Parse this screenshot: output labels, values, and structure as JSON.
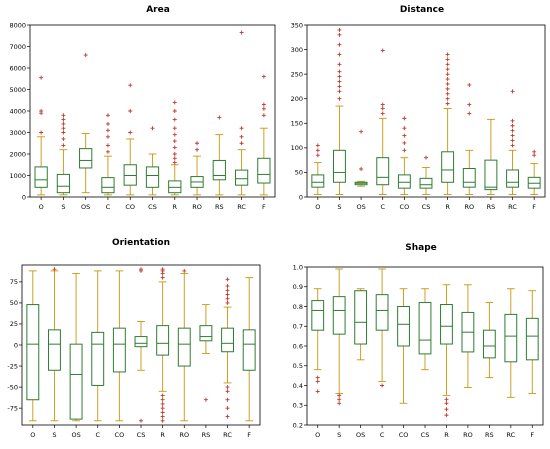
{
  "colors": {
    "box": "#2e7d32",
    "median": "#2e7d32",
    "whisker": "#c8960c",
    "outlier": "#c0392b"
  },
  "chart_data": [
    {
      "type": "box",
      "title": "Area",
      "xlabel": "",
      "ylabel": "",
      "ylim": [
        0,
        8000
      ],
      "yticks": [
        "0",
        "1000",
        "2000",
        "3000",
        "4000",
        "5000",
        "6000",
        "7000",
        "8000"
      ],
      "categories": [
        "O",
        "S",
        "OS",
        "C",
        "CO",
        "CS",
        "R",
        "RO",
        "RS",
        "RC",
        "F"
      ],
      "boxes": [
        {
          "whislo": 100,
          "q1": 450,
          "med": 800,
          "q3": 1400,
          "whishi": 2800,
          "fliers": [
            3000,
            3900,
            4000,
            5550
          ]
        },
        {
          "whislo": 100,
          "q1": 200,
          "med": 500,
          "q3": 1050,
          "whishi": 2200,
          "fliers": [
            2400,
            2700,
            3000,
            3200,
            3400,
            3600,
            3800
          ]
        },
        {
          "whislo": 200,
          "q1": 1350,
          "med": 1700,
          "q3": 2250,
          "whishi": 2950,
          "fliers": [
            6600
          ]
        },
        {
          "whislo": 100,
          "q1": 200,
          "med": 450,
          "q3": 900,
          "whishi": 1900,
          "fliers": [
            2100,
            2400,
            2800,
            3100,
            3400,
            3800
          ]
        },
        {
          "whislo": 100,
          "q1": 550,
          "med": 1000,
          "q3": 1500,
          "whishi": 2700,
          "fliers": [
            3000,
            4000,
            5200
          ]
        },
        {
          "whislo": 100,
          "q1": 450,
          "med": 1000,
          "q3": 1400,
          "whishi": 2000,
          "fliers": [
            3200
          ]
        },
        {
          "whislo": 100,
          "q1": 200,
          "med": 450,
          "q3": 750,
          "whishi": 1500,
          "fliers": [
            1600,
            1800,
            2000,
            2300,
            2600,
            2900,
            3200,
            3600,
            4000,
            4400
          ]
        },
        {
          "whislo": 100,
          "q1": 450,
          "med": 700,
          "q3": 950,
          "whishi": 1900,
          "fliers": [
            2200,
            2500
          ]
        },
        {
          "whislo": 100,
          "q1": 800,
          "med": 1000,
          "q3": 1700,
          "whishi": 2900,
          "fliers": [
            3700
          ]
        },
        {
          "whislo": 100,
          "q1": 550,
          "med": 850,
          "q3": 1250,
          "whishi": 2200,
          "fliers": [
            2500,
            2800,
            3200,
            7650
          ]
        },
        {
          "whislo": 100,
          "q1": 650,
          "med": 1050,
          "q3": 1800,
          "whishi": 3200,
          "fliers": [
            3800,
            4100,
            4300,
            5600
          ]
        }
      ]
    },
    {
      "type": "box",
      "title": "Distance",
      "xlabel": "",
      "ylabel": "",
      "ylim": [
        0,
        350
      ],
      "yticks": [
        "0",
        "50",
        "100",
        "150",
        "200",
        "250",
        "300",
        "350"
      ],
      "categories": [
        "O",
        "S",
        "OS",
        "C",
        "CO",
        "CS",
        "R",
        "RO",
        "RS",
        "RC",
        "F"
      ],
      "boxes": [
        {
          "whislo": 5,
          "q1": 20,
          "med": 30,
          "q3": 45,
          "whishi": 70,
          "fliers": [
            85,
            95,
            105
          ]
        },
        {
          "whislo": 5,
          "q1": 30,
          "med": 50,
          "q3": 95,
          "whishi": 185,
          "fliers": [
            200,
            215,
            225,
            235,
            245,
            255,
            270,
            290,
            310,
            330,
            340
          ]
        },
        {
          "whislo": 22,
          "q1": 25,
          "med": 28,
          "q3": 30,
          "whishi": 32,
          "fliers": [
            57,
            133
          ]
        },
        {
          "whislo": 5,
          "q1": 25,
          "med": 40,
          "q3": 80,
          "whishi": 160,
          "fliers": [
            170,
            180,
            188,
            298
          ]
        },
        {
          "whislo": 5,
          "q1": 18,
          "med": 30,
          "q3": 45,
          "whishi": 80,
          "fliers": [
            95,
            110,
            125,
            140,
            160
          ]
        },
        {
          "whislo": 5,
          "q1": 18,
          "med": 25,
          "q3": 38,
          "whishi": 60,
          "fliers": [
            80
          ]
        },
        {
          "whislo": 5,
          "q1": 30,
          "med": 55,
          "q3": 92,
          "whishi": 180,
          "fliers": [
            190,
            200,
            210,
            220,
            230,
            240,
            250,
            260,
            270,
            280,
            290
          ]
        },
        {
          "whislo": 5,
          "q1": 20,
          "med": 30,
          "q3": 58,
          "whishi": 95,
          "fliers": [
            170,
            188,
            228
          ]
        },
        {
          "whislo": 5,
          "q1": 15,
          "med": 20,
          "q3": 75,
          "whishi": 158,
          "fliers": []
        },
        {
          "whislo": 5,
          "q1": 20,
          "med": 30,
          "q3": 55,
          "whishi": 95,
          "fliers": [
            105,
            115,
            125,
            135,
            145,
            155,
            215
          ]
        },
        {
          "whislo": 5,
          "q1": 18,
          "med": 28,
          "q3": 40,
          "whishi": 68,
          "fliers": [
            85,
            92
          ]
        }
      ]
    },
    {
      "type": "box",
      "title": "Orientation",
      "xlabel": "",
      "ylabel": "",
      "ylim": [
        -95,
        95
      ],
      "yticks": [
        "-75",
        "-50",
        "-25",
        "0",
        "25",
        "50",
        "75"
      ],
      "categories": [
        "O",
        "S",
        "OS",
        "C",
        "CO",
        "CS",
        "R",
        "RO",
        "RS",
        "RC",
        "F"
      ],
      "boxes": [
        {
          "whislo": -90,
          "q1": -65,
          "med": 1,
          "q3": 48,
          "whishi": 88,
          "fliers": []
        },
        {
          "whislo": -90,
          "q1": -30,
          "med": 1,
          "q3": 18,
          "whishi": 88,
          "fliers": [
            90
          ]
        },
        {
          "whislo": -90,
          "q1": -88,
          "med": -35,
          "q3": 1,
          "whishi": 85,
          "fliers": []
        },
        {
          "whislo": -90,
          "q1": -48,
          "med": 1,
          "q3": 15,
          "whishi": 88,
          "fliers": []
        },
        {
          "whislo": -90,
          "q1": -32,
          "med": 1,
          "q3": 20,
          "whishi": 88,
          "fliers": []
        },
        {
          "whislo": -30,
          "q1": -2,
          "med": 2,
          "q3": 10,
          "whishi": 28,
          "fliers": [
            -90,
            88,
            90
          ]
        },
        {
          "whislo": -55,
          "q1": -12,
          "med": 2,
          "q3": 23,
          "whishi": 75,
          "fliers": [
            -90,
            -85,
            -80,
            -75,
            -70,
            -65,
            -60,
            80,
            85,
            88,
            90
          ]
        },
        {
          "whislo": -90,
          "q1": -25,
          "med": 1,
          "q3": 20,
          "whishi": 85,
          "fliers": [
            88
          ]
        },
        {
          "whislo": -10,
          "q1": 5,
          "med": 10,
          "q3": 23,
          "whishi": 48,
          "fliers": [
            -65
          ]
        },
        {
          "whislo": -45,
          "q1": -8,
          "med": 2,
          "q3": 20,
          "whishi": 45,
          "fliers": [
            -85,
            -75,
            -65,
            -55,
            -50,
            50,
            55,
            60,
            65,
            70,
            78
          ]
        },
        {
          "whislo": -90,
          "q1": -30,
          "med": 1,
          "q3": 18,
          "whishi": 80,
          "fliers": []
        }
      ]
    },
    {
      "type": "box",
      "title": "Shape",
      "xlabel": "",
      "ylabel": "",
      "ylim": [
        0.2,
        1.0
      ],
      "yticks": [
        "0.2",
        "0.3",
        "0.4",
        "0.5",
        "0.6",
        "0.7",
        "0.8",
        "0.9",
        "1.0"
      ],
      "categories": [
        "O",
        "S",
        "OS",
        "C",
        "CO",
        "CS",
        "R",
        "RO",
        "RS",
        "RC",
        "F"
      ],
      "boxes": [
        {
          "whislo": 0.48,
          "q1": 0.68,
          "med": 0.78,
          "q3": 0.83,
          "whishi": 0.89,
          "fliers": [
            0.37,
            0.42,
            0.44
          ]
        },
        {
          "whislo": 0.36,
          "q1": 0.66,
          "med": 0.78,
          "q3": 0.85,
          "whishi": 0.99,
          "fliers": [
            0.31,
            0.33,
            0.35
          ]
        },
        {
          "whislo": 0.53,
          "q1": 0.61,
          "med": 0.72,
          "q3": 0.88,
          "whishi": 0.89,
          "fliers": []
        },
        {
          "whislo": 0.42,
          "q1": 0.68,
          "med": 0.78,
          "q3": 0.86,
          "whishi": 0.99,
          "fliers": [
            0.4
          ]
        },
        {
          "whislo": 0.31,
          "q1": 0.6,
          "med": 0.71,
          "q3": 0.8,
          "whishi": 0.89,
          "fliers": []
        },
        {
          "whislo": 0.48,
          "q1": 0.56,
          "med": 0.63,
          "q3": 0.82,
          "whishi": 0.89,
          "fliers": []
        },
        {
          "whislo": 0.35,
          "q1": 0.61,
          "med": 0.7,
          "q3": 0.81,
          "whishi": 0.91,
          "fliers": [
            0.25,
            0.28,
            0.31,
            0.33
          ]
        },
        {
          "whislo": 0.39,
          "q1": 0.57,
          "med": 0.67,
          "q3": 0.77,
          "whishi": 0.91,
          "fliers": []
        },
        {
          "whislo": 0.44,
          "q1": 0.54,
          "med": 0.6,
          "q3": 0.68,
          "whishi": 0.82,
          "fliers": []
        },
        {
          "whislo": 0.34,
          "q1": 0.52,
          "med": 0.65,
          "q3": 0.76,
          "whishi": 0.89,
          "fliers": []
        },
        {
          "whislo": 0.36,
          "q1": 0.53,
          "med": 0.65,
          "q3": 0.74,
          "whishi": 0.88,
          "fliers": []
        }
      ]
    }
  ]
}
